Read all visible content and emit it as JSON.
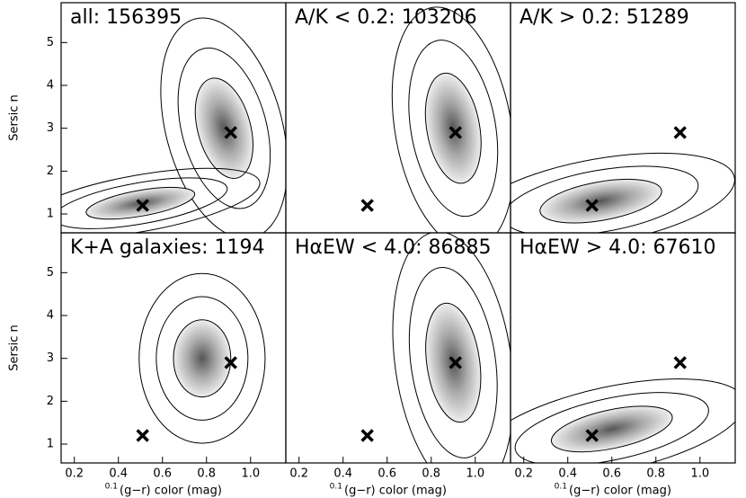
{
  "chart_data": [
    {
      "type": "scatter",
      "title": "all: 156395",
      "ylabel": "Sersic n",
      "x": [
        0.51,
        0.91
      ],
      "y": [
        1.2,
        2.9
      ],
      "xlim": [
        0.14,
        1.16
      ],
      "ylim": [
        0.56,
        5.93
      ],
      "yticks": [
        1,
        2,
        3,
        4,
        5
      ],
      "color": "#000000"
    },
    {
      "type": "scatter",
      "title": "A/K < 0.2: 103206",
      "x": [
        0.51,
        0.91
      ],
      "y": [
        1.2,
        2.9
      ],
      "xlim": [
        0.14,
        1.16
      ],
      "ylim": [
        0.56,
        5.93
      ],
      "color": "#000000"
    },
    {
      "type": "scatter",
      "title": "A/K > 0.2: 51289",
      "x": [
        0.51,
        0.91
      ],
      "y": [
        1.2,
        2.9
      ],
      "xlim": [
        0.14,
        1.16
      ],
      "ylim": [
        0.56,
        5.93
      ],
      "color": "#000000"
    },
    {
      "type": "scatter",
      "title": "K+A galaxies: 1194",
      "ylabel": "Sersic n",
      "xlabel_sup": "0.1",
      "xlabel": "(g−r) color (mag)",
      "x": [
        0.51,
        0.91
      ],
      "y": [
        1.2,
        2.9
      ],
      "xlim": [
        0.14,
        1.16
      ],
      "ylim": [
        0.56,
        5.93
      ],
      "xticks": [
        0.2,
        0.4,
        0.6,
        0.8,
        {
          "value": 1,
          "label": "1.0"
        }
      ],
      "yticks": [
        1,
        2,
        3,
        4,
        5
      ],
      "color": "#000000"
    },
    {
      "type": "scatter",
      "title": "HαEW < 4.0: 86885",
      "xlabel_sup": "0.1",
      "xlabel": "(g−r) color (mag)",
      "x": [
        0.51,
        0.91
      ],
      "y": [
        1.2,
        2.9
      ],
      "xlim": [
        0.14,
        1.16
      ],
      "ylim": [
        0.56,
        5.93
      ],
      "xticks": [
        0.2,
        0.4,
        0.6,
        0.8,
        {
          "value": 1,
          "label": "1.0"
        }
      ],
      "color": "#000000"
    },
    {
      "type": "scatter",
      "title": "HαEW > 4.0: 67610",
      "xlabel_sup": "0.1",
      "xlabel": "(g−r) color (mag)",
      "x": [
        0.51,
        0.91
      ],
      "y": [
        1.2,
        2.9
      ],
      "xlim": [
        0.14,
        1.16
      ],
      "ylim": [
        0.56,
        5.93
      ],
      "xticks": [
        0.2,
        0.4,
        0.6,
        0.8,
        {
          "value": 1,
          "label": "1.0"
        }
      ],
      "color": "#000000"
    }
  ]
}
